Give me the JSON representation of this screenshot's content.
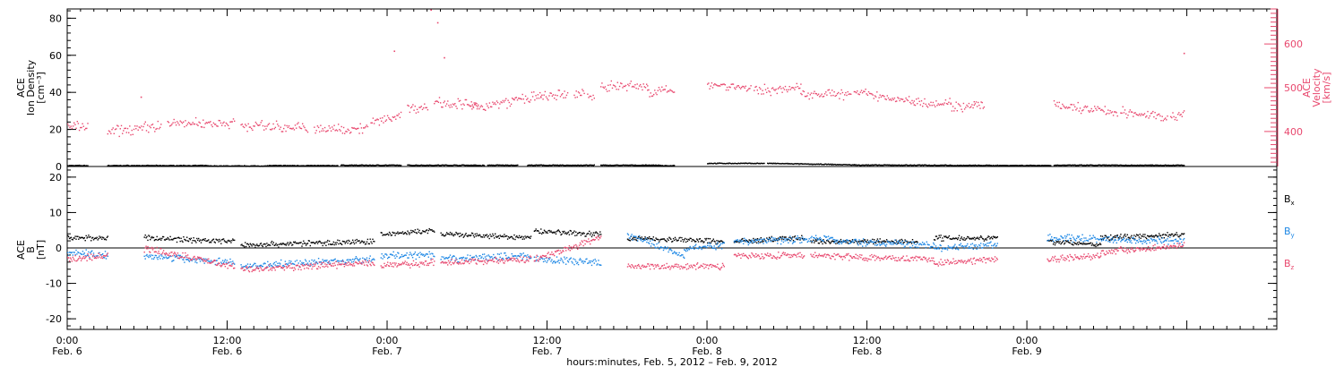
{
  "chart_data": [
    {
      "type": "scatter",
      "panel": "top",
      "ylabel_left": [
        "ACE",
        "Ion Density",
        "[cm⁻³]"
      ],
      "ylabel_right": [
        "ACE",
        "Velocity",
        "[km/s]"
      ],
      "ylim_left": [
        0,
        85
      ],
      "ylim_right": [
        320,
        680
      ],
      "yticks_left": [
        "0",
        "20",
        "40",
        "60",
        "80"
      ],
      "yticks_right": [
        "400",
        "500",
        "600"
      ],
      "series": [
        {
          "axis": "left",
          "color": "#000000",
          "segments": [
            {
              "x": [
                0,
                6
              ],
              "y": [
                0.8,
                0.8
              ]
            },
            {
              "x": [
                12,
                42
              ],
              "y": [
                0.8,
                0.8
              ]
            },
            {
              "x": [
                42,
                60
              ],
              "y": [
                0.6,
                0.6
              ]
            },
            {
              "x": [
                60,
                81
              ],
              "y": [
                0.8,
                0.8
              ]
            },
            {
              "x": [
                82,
                100
              ],
              "y": [
                1.0,
                1.0
              ]
            },
            {
              "x": [
                102,
                123
              ],
              "y": [
                1.0,
                1.0
              ]
            },
            {
              "x": [
                120,
                125
              ],
              "y": [
                0.9,
                0.9
              ]
            },
            {
              "x": [
                126,
                135
              ],
              "y": [
                1.0,
                1.0
              ]
            },
            {
              "x": [
                138,
                158
              ],
              "y": [
                1.0,
                1.0
              ]
            },
            {
              "x": [
                160,
                178
              ],
              "y": [
                1.0,
                1.0
              ]
            },
            {
              "x": [
                170,
                182
              ],
              "y": [
                0.8,
                0.8
              ]
            },
            {
              "x": [
                192,
                209
              ],
              "y": [
                2.0,
                2.0
              ]
            },
            {
              "x": [
                210,
                236
              ],
              "y": [
                2.0,
                1.2
              ]
            },
            {
              "x": [
                236,
                265
              ],
              "y": [
                1.1,
                1.0
              ]
            },
            {
              "x": [
                265,
                295
              ],
              "y": [
                0.9,
                0.9
              ]
            },
            {
              "x": [
                296,
                326
              ],
              "y": [
                1.0,
                1.0
              ]
            },
            {
              "x": [
                325,
                335
              ],
              "y": [
                1.0,
                1.0
              ]
            }
          ]
        },
        {
          "axis": "right",
          "color": "#e8486e",
          "segments": [
            {
              "x": [
                0,
                6
              ],
              "y": [
                415,
                410
              ]
            },
            {
              "x": [
                12,
                28
              ],
              "y": [
                400,
                415
              ]
            },
            {
              "x": [
                30,
                50
              ],
              "y": [
                420,
                420
              ]
            },
            {
              "x": [
                52,
                72
              ],
              "y": [
                415,
                410
              ]
            },
            {
              "x": [
                74,
                90
              ],
              "y": [
                405,
                410
              ]
            },
            {
              "x": [
                91,
                100
              ],
              "y": [
                420,
                440
              ]
            },
            {
              "x": [
                102,
                108
              ],
              "y": [
                455,
                455
              ]
            },
            {
              "x": [
                110,
                123
              ],
              "y": [
                470,
                460
              ]
            },
            {
              "x": [
                121,
                134
              ],
              "y": [
                455,
                470
              ]
            },
            {
              "x": [
                134,
                142
              ],
              "y": [
                475,
                480
              ]
            },
            {
              "x": [
                142,
                150
              ],
              "y": [
                480,
                485
              ]
            },
            {
              "x": [
                152,
                155
              ],
              "y": [
                485,
                490
              ]
            },
            {
              "x": [
                156,
                158
              ],
              "y": [
                480,
                480
              ]
            },
            {
              "x": [
                160,
                174
              ],
              "y": [
                505,
                505
              ]
            },
            {
              "x": [
                174,
                182
              ],
              "y": [
                490,
                495
              ]
            },
            {
              "x": [
                192,
                205
              ],
              "y": [
                510,
                500
              ]
            },
            {
              "x": [
                206,
                220
              ],
              "y": [
                495,
                500
              ]
            },
            {
              "x": [
                220,
                235
              ],
              "y": [
                490,
                485
              ]
            },
            {
              "x": [
                236,
                254
              ],
              "y": [
                490,
                470
              ]
            },
            {
              "x": [
                254,
                265
              ],
              "y": [
                470,
                465
              ]
            },
            {
              "x": [
                265,
                272
              ],
              "y": [
                460,
                455
              ]
            },
            {
              "x": [
                272,
                275
              ],
              "y": [
                465,
                460
              ]
            },
            {
              "x": [
                296,
                315
              ],
              "y": [
                460,
                445
              ]
            },
            {
              "x": [
                316,
                330
              ],
              "y": [
                445,
                435
              ]
            },
            {
              "x": [
                331,
                335
              ],
              "y": [
                430,
                440
              ]
            }
          ],
          "outliers": [
            {
              "x": 22,
              "y": 480
            },
            {
              "x": 98,
              "y": 585
            },
            {
              "x": 109,
              "y": 679
            },
            {
              "x": 111,
              "y": 650
            },
            {
              "x": 113,
              "y": 570
            },
            {
              "x": 335,
              "y": 580
            }
          ]
        }
      ]
    },
    {
      "type": "scatter",
      "panel": "bottom",
      "ylabel": [
        "ACE",
        "B",
        "[nT]"
      ],
      "ylim": [
        -23,
        23
      ],
      "yticks": [
        "-20",
        "-10",
        "0",
        "10",
        "20"
      ],
      "legend": [
        {
          "label": "B",
          "sub": "x",
          "color": "#000000"
        },
        {
          "label": "B",
          "sub": "y",
          "color": "#1e88e5"
        },
        {
          "label": "B",
          "sub": "z",
          "color": "#e8486e"
        }
      ],
      "series": [
        {
          "name": "Bx",
          "color": "#000000",
          "segments": [
            {
              "x": [
                0,
                12
              ],
              "y": [
                3,
                3
              ]
            },
            {
              "x": [
                23,
                50
              ],
              "y": [
                3,
                2
              ]
            },
            {
              "x": [
                52,
                92
              ],
              "y": [
                1,
                2
              ]
            },
            {
              "x": [
                94,
                110
              ],
              "y": [
                4,
                5
              ]
            },
            {
              "x": [
                112,
                139
              ],
              "y": [
                4,
                3
              ]
            },
            {
              "x": [
                140,
                160
              ],
              "y": [
                5,
                4
              ]
            },
            {
              "x": [
                168,
                197
              ],
              "y": [
                3,
                2
              ]
            },
            {
              "x": [
                200,
                221
              ],
              "y": [
                2,
                3
              ]
            },
            {
              "x": [
                223,
                255
              ],
              "y": [
                2,
                2
              ]
            },
            {
              "x": [
                260,
                279
              ],
              "y": [
                3,
                3
              ]
            },
            {
              "x": [
                294,
                310
              ],
              "y": [
                2,
                1
              ]
            },
            {
              "x": [
                310,
                335
              ],
              "y": [
                3,
                4
              ]
            }
          ]
        },
        {
          "name": "By",
          "color": "#1e88e5",
          "segments": [
            {
              "x": [
                0,
                12
              ],
              "y": [
                -1,
                -2
              ]
            },
            {
              "x": [
                23,
                50
              ],
              "y": [
                -2,
                -4
              ]
            },
            {
              "x": [
                52,
                92
              ],
              "y": [
                -5,
                -3
              ]
            },
            {
              "x": [
                94,
                110
              ],
              "y": [
                -2,
                -2
              ]
            },
            {
              "x": [
                112,
                139
              ],
              "y": [
                -3,
                -2
              ]
            },
            {
              "x": [
                140,
                160
              ],
              "y": [
                -3,
                -4
              ]
            },
            {
              "x": [
                168,
                185
              ],
              "y": [
                4,
                -2
              ]
            },
            {
              "x": [
                185,
                197
              ],
              "y": [
                0,
                1
              ]
            },
            {
              "x": [
                200,
                230
              ],
              "y": [
                2,
                3
              ]
            },
            {
              "x": [
                230,
                260
              ],
              "y": [
                2,
                1
              ]
            },
            {
              "x": [
                260,
                279
              ],
              "y": [
                0,
                1
              ]
            },
            {
              "x": [
                294,
                335
              ],
              "y": [
                3,
                2
              ]
            }
          ]
        },
        {
          "name": "Bz",
          "color": "#e8486e",
          "segments": [
            {
              "x": [
                0,
                12
              ],
              "y": [
                -3,
                -2
              ]
            },
            {
              "x": [
                23,
                50
              ],
              "y": [
                0,
                -5
              ]
            },
            {
              "x": [
                52,
                92
              ],
              "y": [
                -6,
                -4
              ]
            },
            {
              "x": [
                94,
                110
              ],
              "y": [
                -5,
                -4
              ]
            },
            {
              "x": [
                112,
                139
              ],
              "y": [
                -4,
                -3
              ]
            },
            {
              "x": [
                140,
                160
              ],
              "y": [
                -3,
                3
              ]
            },
            {
              "x": [
                168,
                197
              ],
              "y": [
                -5,
                -5
              ]
            },
            {
              "x": [
                200,
                221
              ],
              "y": [
                -2,
                -2
              ]
            },
            {
              "x": [
                223,
                260
              ],
              "y": [
                -2,
                -3
              ]
            },
            {
              "x": [
                260,
                279
              ],
              "y": [
                -4,
                -3
              ]
            },
            {
              "x": [
                294,
                310
              ],
              "y": [
                -3,
                -2
              ]
            },
            {
              "x": [
                310,
                335
              ],
              "y": [
                -1,
                1
              ]
            }
          ]
        }
      ]
    }
  ],
  "xaxis": {
    "xlim": [
      0,
      363
    ],
    "ticks": [
      {
        "h": 0,
        "time": "0:00",
        "date": "Feb. 6"
      },
      {
        "h": 48,
        "time": "12:00",
        "date": "Feb. 6"
      },
      {
        "h": 96,
        "time": "0:00",
        "date": "Feb. 7"
      },
      {
        "h": 144,
        "time": "12:00",
        "date": "Feb. 7"
      },
      {
        "h": 192,
        "time": "0:00",
        "date": "Feb. 8"
      },
      {
        "h": 240,
        "time": "12:00",
        "date": "Feb. 8"
      },
      {
        "h": 288,
        "time": "0:00",
        "date": "Feb. 9"
      }
    ],
    "label": "hours:minutes, Feb.  5, 2012 – Feb.  9, 2012"
  },
  "colors": {
    "frame": "#000000",
    "density": "#000000",
    "velocity": "#e8486e",
    "bx": "#000000",
    "by": "#1e88e5",
    "bz": "#e8486e"
  }
}
